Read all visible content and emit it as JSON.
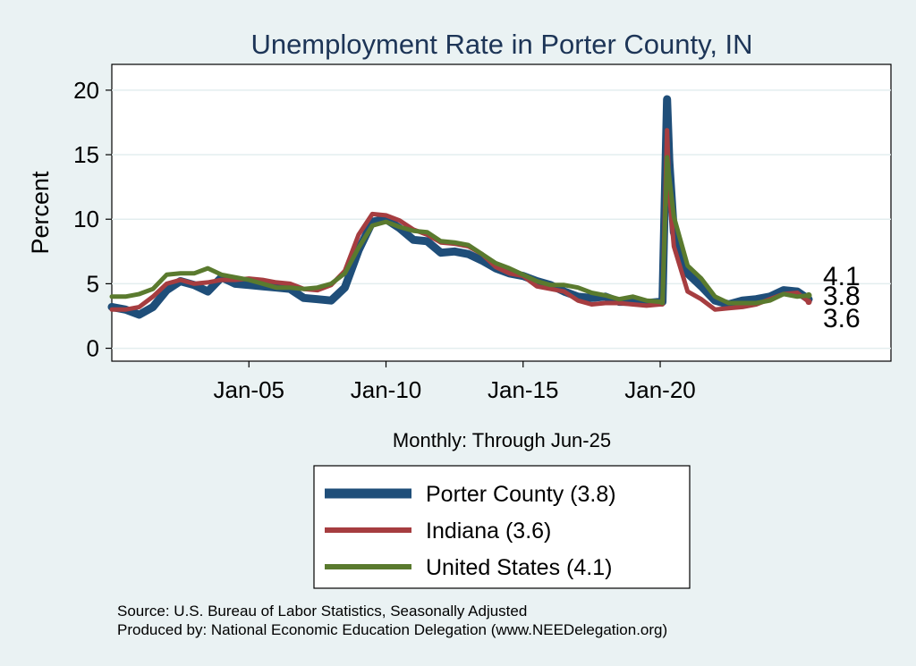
{
  "chart_data": {
    "type": "line",
    "title": "Unemployment Rate in Porter  County, IN",
    "ylabel": "Percent",
    "xlabel": "Monthly: Through Jun-25",
    "xlim": [
      "2000-01",
      "2028-06"
    ],
    "ylim": [
      -1,
      22
    ],
    "yticks": [
      0,
      5,
      10,
      15,
      20
    ],
    "xticks": [
      {
        "date": "2005-01",
        "label": "Jan-05"
      },
      {
        "date": "2010-01",
        "label": "Jan-10"
      },
      {
        "date": "2015-01",
        "label": "Jan-15"
      },
      {
        "date": "2020-01",
        "label": "Jan-20"
      }
    ],
    "grid": true,
    "legend_position": "bottom",
    "end_labels": [
      "4.1",
      "3.8",
      "3.6"
    ],
    "series": [
      {
        "name": "Porter  County (3.8)",
        "color": "#1f4e79",
        "points": [
          [
            "2000-01",
            3.2
          ],
          [
            "2000-07",
            3.0
          ],
          [
            "2001-01",
            2.6
          ],
          [
            "2001-07",
            3.2
          ],
          [
            "2002-01",
            4.5
          ],
          [
            "2002-07",
            5.2
          ],
          [
            "2003-01",
            4.9
          ],
          [
            "2003-07",
            4.4
          ],
          [
            "2004-01",
            5.5
          ],
          [
            "2004-07",
            5.0
          ],
          [
            "2005-01",
            4.9
          ],
          [
            "2005-07",
            4.8
          ],
          [
            "2006-01",
            4.7
          ],
          [
            "2006-07",
            4.6
          ],
          [
            "2007-01",
            3.9
          ],
          [
            "2007-07",
            3.8
          ],
          [
            "2008-01",
            3.7
          ],
          [
            "2008-07",
            4.7
          ],
          [
            "2009-01",
            7.6
          ],
          [
            "2009-07",
            9.8
          ],
          [
            "2010-01",
            10.0
          ],
          [
            "2010-07",
            9.3
          ],
          [
            "2011-01",
            8.4
          ],
          [
            "2011-07",
            8.3
          ],
          [
            "2012-01",
            7.4
          ],
          [
            "2012-07",
            7.5
          ],
          [
            "2013-01",
            7.3
          ],
          [
            "2013-07",
            6.8
          ],
          [
            "2014-01",
            6.2
          ],
          [
            "2014-07",
            5.8
          ],
          [
            "2015-01",
            5.6
          ],
          [
            "2015-07",
            5.2
          ],
          [
            "2016-01",
            4.9
          ],
          [
            "2016-07",
            4.4
          ],
          [
            "2017-01",
            4.0
          ],
          [
            "2017-07",
            3.9
          ],
          [
            "2018-01",
            4.0
          ],
          [
            "2018-07",
            3.6
          ],
          [
            "2019-01",
            3.6
          ],
          [
            "2019-07",
            3.5
          ],
          [
            "2020-01",
            3.6
          ],
          [
            "2020-02",
            3.6
          ],
          [
            "2020-04",
            19.3
          ],
          [
            "2020-05",
            14.5
          ],
          [
            "2020-07",
            9.0
          ],
          [
            "2021-01",
            5.8
          ],
          [
            "2021-07",
            4.8
          ],
          [
            "2022-01",
            3.7
          ],
          [
            "2022-07",
            3.4
          ],
          [
            "2023-01",
            3.7
          ],
          [
            "2023-07",
            3.8
          ],
          [
            "2024-01",
            4.0
          ],
          [
            "2024-07",
            4.5
          ],
          [
            "2025-01",
            4.4
          ],
          [
            "2025-06",
            3.8
          ]
        ]
      },
      {
        "name": "Indiana (3.6)",
        "color": "#a63d40",
        "points": [
          [
            "2000-01",
            3.0
          ],
          [
            "2000-07",
            3.0
          ],
          [
            "2001-01",
            3.2
          ],
          [
            "2001-07",
            4.0
          ],
          [
            "2002-01",
            5.0
          ],
          [
            "2002-07",
            5.3
          ],
          [
            "2003-01",
            5.0
          ],
          [
            "2003-07",
            5.1
          ],
          [
            "2004-01",
            5.3
          ],
          [
            "2004-07",
            5.3
          ],
          [
            "2005-01",
            5.4
          ],
          [
            "2005-07",
            5.3
          ],
          [
            "2006-01",
            5.1
          ],
          [
            "2006-07",
            5.0
          ],
          [
            "2007-01",
            4.6
          ],
          [
            "2007-07",
            4.5
          ],
          [
            "2008-01",
            4.9
          ],
          [
            "2008-07",
            6.0
          ],
          [
            "2009-01",
            8.8
          ],
          [
            "2009-07",
            10.4
          ],
          [
            "2010-01",
            10.3
          ],
          [
            "2010-07",
            9.9
          ],
          [
            "2011-01",
            9.2
          ],
          [
            "2011-07",
            8.8
          ],
          [
            "2012-01",
            8.2
          ],
          [
            "2012-07",
            8.1
          ],
          [
            "2013-01",
            7.9
          ],
          [
            "2013-07",
            7.3
          ],
          [
            "2014-01",
            6.3
          ],
          [
            "2014-07",
            5.8
          ],
          [
            "2015-01",
            5.6
          ],
          [
            "2015-07",
            4.8
          ],
          [
            "2016-01",
            4.6
          ],
          [
            "2016-07",
            4.4
          ],
          [
            "2017-01",
            3.7
          ],
          [
            "2017-07",
            3.4
          ],
          [
            "2018-01",
            3.5
          ],
          [
            "2018-07",
            3.5
          ],
          [
            "2019-01",
            3.4
          ],
          [
            "2019-07",
            3.3
          ],
          [
            "2020-01",
            3.4
          ],
          [
            "2020-02",
            3.4
          ],
          [
            "2020-04",
            16.9
          ],
          [
            "2020-05",
            12.0
          ],
          [
            "2020-07",
            7.9
          ],
          [
            "2021-01",
            4.4
          ],
          [
            "2021-07",
            3.8
          ],
          [
            "2022-01",
            3.0
          ],
          [
            "2022-07",
            3.1
          ],
          [
            "2023-01",
            3.2
          ],
          [
            "2023-07",
            3.4
          ],
          [
            "2024-01",
            3.8
          ],
          [
            "2024-07",
            4.2
          ],
          [
            "2025-01",
            4.3
          ],
          [
            "2025-06",
            3.6
          ]
        ]
      },
      {
        "name": "United States (4.1)",
        "color": "#5a7a2e",
        "points": [
          [
            "2000-01",
            4.0
          ],
          [
            "2000-07",
            4.0
          ],
          [
            "2001-01",
            4.2
          ],
          [
            "2001-07",
            4.6
          ],
          [
            "2002-01",
            5.7
          ],
          [
            "2002-07",
            5.8
          ],
          [
            "2003-01",
            5.8
          ],
          [
            "2003-07",
            6.2
          ],
          [
            "2004-01",
            5.7
          ],
          [
            "2004-07",
            5.5
          ],
          [
            "2005-01",
            5.3
          ],
          [
            "2005-07",
            5.0
          ],
          [
            "2006-01",
            4.7
          ],
          [
            "2006-07",
            4.7
          ],
          [
            "2007-01",
            4.6
          ],
          [
            "2007-07",
            4.7
          ],
          [
            "2008-01",
            5.0
          ],
          [
            "2008-07",
            5.8
          ],
          [
            "2009-01",
            7.8
          ],
          [
            "2009-07",
            9.5
          ],
          [
            "2010-01",
            9.8
          ],
          [
            "2010-07",
            9.4
          ],
          [
            "2011-01",
            9.1
          ],
          [
            "2011-07",
            9.0
          ],
          [
            "2012-01",
            8.3
          ],
          [
            "2012-07",
            8.2
          ],
          [
            "2013-01",
            8.0
          ],
          [
            "2013-07",
            7.3
          ],
          [
            "2014-01",
            6.6
          ],
          [
            "2014-07",
            6.2
          ],
          [
            "2015-01",
            5.7
          ],
          [
            "2015-07",
            5.2
          ],
          [
            "2016-01",
            4.9
          ],
          [
            "2016-07",
            4.9
          ],
          [
            "2017-01",
            4.7
          ],
          [
            "2017-07",
            4.3
          ],
          [
            "2018-01",
            4.1
          ],
          [
            "2018-07",
            3.8
          ],
          [
            "2019-01",
            4.0
          ],
          [
            "2019-07",
            3.7
          ],
          [
            "2020-01",
            3.6
          ],
          [
            "2020-02",
            3.5
          ],
          [
            "2020-04",
            14.8
          ],
          [
            "2020-05",
            13.2
          ],
          [
            "2020-07",
            10.2
          ],
          [
            "2021-01",
            6.4
          ],
          [
            "2021-07",
            5.4
          ],
          [
            "2022-01",
            4.0
          ],
          [
            "2022-07",
            3.5
          ],
          [
            "2023-01",
            3.5
          ],
          [
            "2023-07",
            3.5
          ],
          [
            "2024-01",
            3.7
          ],
          [
            "2024-07",
            4.2
          ],
          [
            "2025-01",
            4.0
          ],
          [
            "2025-06",
            4.1
          ]
        ]
      }
    ]
  },
  "notes": {
    "source": "Source: U.S. Bureau of Labor Statistics, Seasonally Adjusted",
    "produced": "Produced by: National Economic Education Delegation (www.NEEDelegation.org)"
  }
}
